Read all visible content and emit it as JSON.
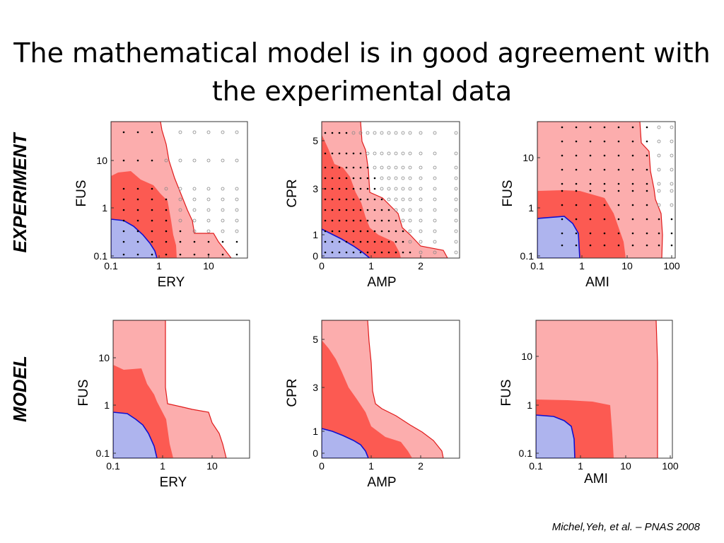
{
  "title": {
    "line1": "The mathematical model is in good agreement with",
    "line2": "the experimental data"
  },
  "row_labels": {
    "experiment": "EXPERIMENT",
    "model": "MODEL"
  },
  "citation": "Michel,Yeh, et al. – PNAS 2008",
  "colors": {
    "light_red": "#fcadad",
    "red": "#fc5a52",
    "blue": "#aeb4ee",
    "red_edge": "#e01a1a",
    "blue_edge": "#1010d0"
  },
  "chart_data": [
    {
      "type": "area",
      "row": "EXPERIMENT",
      "xlabel": "ERY",
      "ylabel": "FUS",
      "xscale": "log",
      "yscale": "log",
      "xticks": [
        "0.1",
        "1",
        "10"
      ],
      "yticks": [
        "0.1",
        "1",
        "10"
      ],
      "markers": "filled dots (black) and open circles (gray)"
    },
    {
      "type": "area",
      "row": "EXPERIMENT",
      "xlabel": "AMP",
      "ylabel": "CPR",
      "xscale": "linear",
      "yscale": "linear",
      "xticks": [
        "0",
        "1",
        "2"
      ],
      "yticks": [
        "0",
        "1",
        "3",
        "5"
      ],
      "markers": "filled dots (black) and open circles (gray)"
    },
    {
      "type": "area",
      "row": "EXPERIMENT",
      "xlabel": "AMI",
      "ylabel": "FUS",
      "xscale": "log",
      "yscale": "log",
      "xticks": [
        "0.1",
        "1",
        "10",
        "100"
      ],
      "yticks": [
        "0.1",
        "1",
        "10"
      ],
      "markers": "filled dots (black) and open circles (gray)"
    },
    {
      "type": "area",
      "row": "MODEL",
      "xlabel": "ERY",
      "ylabel": "FUS",
      "xscale": "log",
      "yscale": "log",
      "xticks": [
        "0.1",
        "1",
        "10"
      ],
      "yticks": [
        "0.1",
        "1",
        "10"
      ]
    },
    {
      "type": "area",
      "row": "MODEL",
      "xlabel": "AMP",
      "ylabel": "CPR",
      "xscale": "linear",
      "yscale": "linear",
      "xticks": [
        "0",
        "1",
        "2"
      ],
      "yticks": [
        "0",
        "1",
        "3",
        "5"
      ]
    },
    {
      "type": "area",
      "row": "MODEL",
      "xlabel": "AMI",
      "ylabel": "FUS",
      "xscale": "log",
      "yscale": "log",
      "xticks": [
        "0.1",
        "1",
        "10",
        "100"
      ],
      "yticks": [
        "0.1",
        "1",
        "10"
      ]
    }
  ]
}
